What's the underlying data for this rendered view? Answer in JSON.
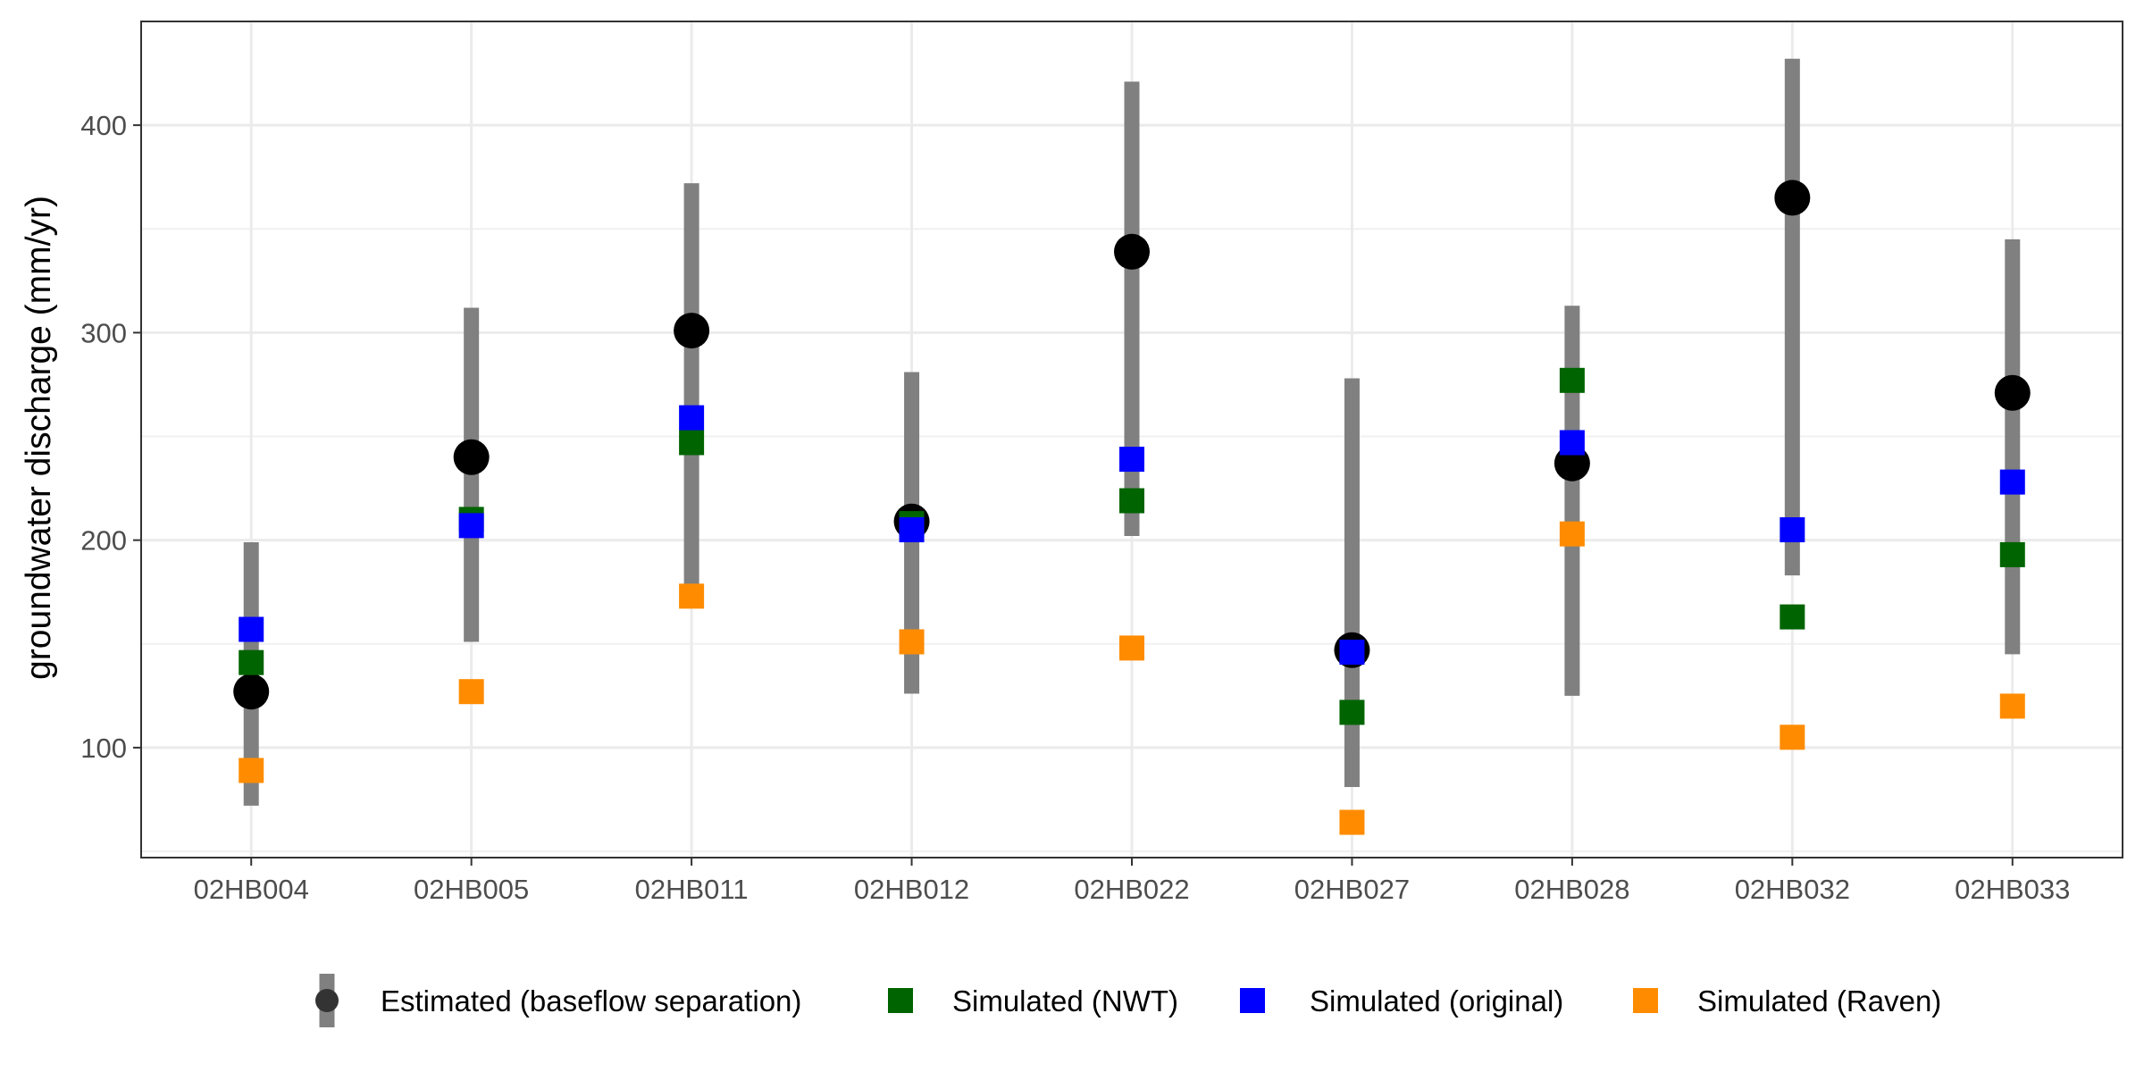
{
  "chart_data": {
    "type": "scatter",
    "title": "",
    "xlabel": "",
    "ylabel": "groundwater discharge (mm/yr)",
    "ylim": [
      47,
      450
    ],
    "yticks": [
      100,
      200,
      300,
      400
    ],
    "grid": true,
    "legend_position": "bottom",
    "categories": [
      "02HB004",
      "02HB005",
      "02HB011",
      "02HB012",
      "02HB022",
      "02HB027",
      "02HB028",
      "02HB032",
      "02HB033"
    ],
    "estimated": {
      "name": "Estimated (baseflow separation)",
      "color": "#000000",
      "range_color": "#808080",
      "values": [
        127,
        240,
        301,
        209,
        339,
        147,
        237,
        365,
        271
      ],
      "low": [
        72,
        151,
        178,
        126,
        202,
        81,
        125,
        183,
        145
      ],
      "high": [
        199,
        312,
        372,
        281,
        421,
        278,
        313,
        432,
        345
      ]
    },
    "series": [
      {
        "name": "Simulated (NWT)",
        "color": "#006400",
        "values": [
          141,
          210,
          247,
          208,
          219,
          117,
          277,
          163,
          193
        ]
      },
      {
        "name": "Simulated (original)",
        "color": "#0000ff",
        "values": [
          157,
          207,
          259,
          205,
          239,
          146,
          247,
          205,
          228
        ]
      },
      {
        "name": "Simulated (Raven)",
        "color": "#ff8c00",
        "values": [
          89,
          127,
          173,
          151,
          148,
          64,
          203,
          105,
          120
        ]
      }
    ]
  }
}
